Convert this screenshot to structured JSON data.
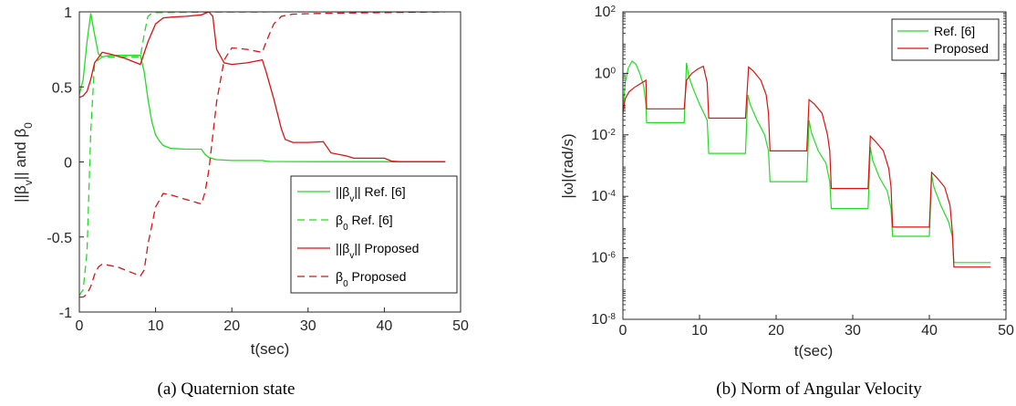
{
  "chart_data": [
    {
      "type": "line",
      "panel": "a",
      "caption": "(a) Quaternion state",
      "xlabel": "t(sec)",
      "ylabel": "||βv|| and β0",
      "xlim": [
        0,
        50
      ],
      "ylim": [
        -1,
        1
      ],
      "xticks": [
        "0",
        "10",
        "20",
        "30",
        "40",
        "50"
      ],
      "yticks": [
        "-1",
        "-0.5",
        "0",
        "0.5",
        "1"
      ],
      "grid": false,
      "legend_position": "bottom-right",
      "series": [
        {
          "name": "||βv|| Ref. [6]",
          "color": "#22dd22",
          "dash": "solid",
          "x": [
            0,
            0.5,
            1.0,
            1.5,
            2.0,
            2.5,
            3.0,
            4.0,
            5.0,
            7.0,
            8.0,
            8.5,
            9.0,
            9.5,
            10.0,
            10.5,
            11.0,
            12.0,
            14.0,
            16.0,
            16.5,
            17.0,
            18.0,
            20.0,
            24.0,
            24.5,
            25.0,
            32.0,
            40.0,
            41.0,
            48.0
          ],
          "y": [
            0.45,
            0.55,
            0.8,
            0.99,
            0.85,
            0.72,
            0.7,
            0.71,
            0.71,
            0.71,
            0.71,
            0.6,
            0.42,
            0.27,
            0.18,
            0.14,
            0.11,
            0.09,
            0.085,
            0.085,
            0.05,
            0.03,
            0.015,
            0.01,
            0.01,
            0.005,
            0.003,
            0.002,
            0.002,
            0.001,
            0.001
          ]
        },
        {
          "name": "β0 Ref. [6]",
          "color": "#22dd22",
          "dash": "dashed",
          "x": [
            0,
            0.5,
            1.0,
            1.5,
            2.0,
            3.0,
            5.0,
            8.0,
            8.5,
            9.0,
            9.5,
            10.0,
            16.0,
            17.0,
            24.0,
            25.0,
            32.0,
            40.0,
            48.0
          ],
          "y": [
            -0.89,
            -0.85,
            -0.6,
            0.2,
            0.66,
            0.7,
            0.7,
            0.7,
            0.85,
            0.97,
            0.99,
            0.995,
            0.998,
            0.999,
            0.999,
            1.0,
            1.0,
            1.0,
            1.0
          ]
        },
        {
          "name": "||βv|| Proposed",
          "color": "#dd1111",
          "dash": "solid",
          "x": [
            0,
            0.5,
            1.0,
            1.5,
            2.0,
            3.0,
            4.0,
            6.0,
            8.0,
            9.0,
            10.0,
            11.0,
            12.0,
            14.0,
            16.0,
            16.5,
            17.0,
            17.5,
            18.0,
            19.0,
            20.0,
            22.0,
            24.0,
            24.5,
            25.5,
            26.5,
            27.0,
            28.0,
            30.0,
            32.0,
            33.0,
            35.0,
            36.0,
            40.0,
            41.0,
            42.0,
            48.0
          ],
          "y": [
            0.43,
            0.44,
            0.47,
            0.55,
            0.66,
            0.73,
            0.72,
            0.69,
            0.65,
            0.8,
            0.92,
            0.96,
            0.965,
            0.97,
            0.98,
            0.99,
            1.0,
            0.97,
            0.75,
            0.66,
            0.65,
            0.66,
            0.68,
            0.6,
            0.42,
            0.22,
            0.15,
            0.13,
            0.13,
            0.135,
            0.06,
            0.04,
            0.025,
            0.025,
            0.005,
            0.002,
            0.002
          ]
        },
        {
          "name": "β0 Proposed",
          "color": "#dd1111",
          "dash": "dashed",
          "x": [
            0,
            0.5,
            1.0,
            1.5,
            2.0,
            2.5,
            3.0,
            5.0,
            7.0,
            8.0,
            8.5,
            9.0,
            10.0,
            11.0,
            12.0,
            14.0,
            16.0,
            16.5,
            17.0,
            18.0,
            19.0,
            20.0,
            22.0,
            24.0,
            24.5,
            25.5,
            26.5,
            28.0,
            32.0,
            40.0,
            48.0
          ],
          "y": [
            -0.9,
            -0.9,
            -0.88,
            -0.83,
            -0.75,
            -0.7,
            -0.68,
            -0.7,
            -0.74,
            -0.76,
            -0.72,
            -0.55,
            -0.3,
            -0.21,
            -0.22,
            -0.25,
            -0.28,
            -0.2,
            -0.05,
            0.4,
            0.68,
            0.76,
            0.75,
            0.73,
            0.8,
            0.92,
            0.97,
            0.985,
            0.99,
            0.995,
            1.0
          ]
        }
      ]
    },
    {
      "type": "line",
      "panel": "b",
      "caption": "(b) Norm of Angular Velocity",
      "xlabel": "t(sec)",
      "ylabel": "|ω|(rad/s)",
      "xlim": [
        0,
        50
      ],
      "ylim": [
        1e-08,
        100
      ],
      "yscale": "log",
      "xticks": [
        "0",
        "10",
        "20",
        "30",
        "40",
        "50"
      ],
      "yticks": [
        "10^-8",
        "10^-6",
        "10^-4",
        "10^-2",
        "10^0",
        "10^2"
      ],
      "grid": false,
      "legend_position": "top-right",
      "series": [
        {
          "name": "Ref. [6]",
          "color": "#22dd22",
          "dash": "solid",
          "x": [
            0,
            0.3,
            0.7,
            1.2,
            1.7,
            2.2,
            2.7,
            3.0,
            3.1,
            8.0,
            8.3,
            8.6,
            9.2,
            10,
            11,
            11.2,
            16.0,
            16.3,
            16.6,
            17.5,
            18.5,
            19.0,
            19.2,
            24.0,
            24.3,
            24.6,
            25.5,
            26.5,
            27.0,
            27.2,
            32.0,
            32.3,
            32.6,
            33.5,
            34.5,
            35.0,
            35.2,
            40.0,
            40.3,
            40.6,
            41.5,
            42.5,
            43.0,
            43.2,
            48.0
          ],
          "y": [
            0.05,
            0.5,
            1.5,
            2.5,
            2.0,
            1.0,
            0.4,
            0.1,
            0.025,
            0.025,
            2.2,
            0.8,
            0.3,
            0.1,
            0.03,
            0.0025,
            0.0025,
            0.2,
            0.1,
            0.03,
            0.01,
            0.003,
            0.0003,
            0.0003,
            0.03,
            0.012,
            0.003,
            0.0012,
            0.0003,
            4e-05,
            4e-05,
            0.004,
            0.0015,
            0.0004,
            0.00015,
            4e-05,
            5e-06,
            5e-06,
            0.0005,
            0.0002,
            5e-05,
            1.5e-05,
            5e-06,
            7e-07,
            7e-07
          ]
        },
        {
          "name": "Proposed",
          "color": "#dd1111",
          "dash": "solid",
          "x": [
            0,
            0.3,
            0.8,
            1.5,
            2.2,
            2.8,
            3.0,
            3.1,
            8.0,
            8.3,
            9.0,
            9.8,
            10.5,
            11.0,
            11.2,
            16.0,
            16.4,
            17.0,
            18.0,
            18.7,
            19.0,
            19.2,
            24.0,
            24.3,
            25.0,
            26.0,
            26.7,
            27.0,
            27.2,
            32.0,
            32.3,
            33.0,
            34.0,
            34.7,
            35.0,
            35.2,
            40.0,
            40.3,
            41.0,
            42.0,
            42.7,
            43.0,
            43.2,
            48.0
          ],
          "y": [
            0.05,
            0.15,
            0.25,
            0.35,
            0.45,
            0.55,
            0.6,
            0.07,
            0.07,
            0.6,
            1.0,
            1.4,
            1.7,
            0.5,
            0.035,
            0.035,
            1.6,
            1.2,
            0.6,
            0.2,
            0.05,
            0.003,
            0.003,
            0.14,
            0.1,
            0.05,
            0.01,
            0.003,
            0.00018,
            0.00018,
            0.009,
            0.006,
            0.003,
            0.0008,
            0.0002,
            1e-05,
            1e-05,
            0.0006,
            0.0004,
            0.0002,
            5e-05,
            7e-06,
            5e-07,
            5e-07
          ]
        }
      ]
    }
  ]
}
